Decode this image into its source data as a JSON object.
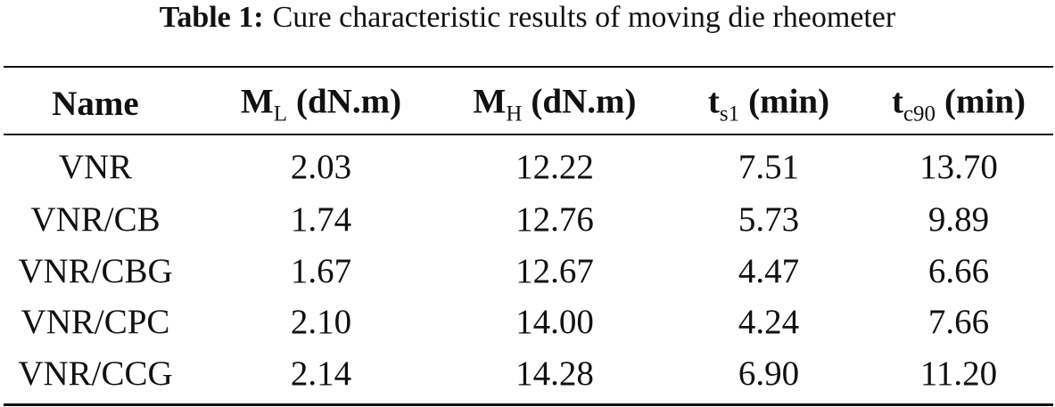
{
  "caption": {
    "label": "Table 1:",
    "text": "Cure characteristic results of moving die rheometer"
  },
  "table": {
    "headers": [
      {
        "text": "Name"
      },
      {
        "text": "M",
        "sub": "L",
        "unit": "(dN.m)"
      },
      {
        "text": "M",
        "sub": "H",
        "unit": "(dN.m)"
      },
      {
        "text": "t",
        "sub": "s1",
        "unit": "(min)"
      },
      {
        "text": "t",
        "sub": "c90",
        "unit": "(min)"
      }
    ],
    "rows": [
      [
        "VNR",
        "2.03",
        "12.22",
        "7.51",
        "13.70"
      ],
      [
        "VNR/CB",
        "1.74",
        "12.76",
        "5.73",
        "9.89"
      ],
      [
        "VNR/CBG",
        "1.67",
        "12.67",
        "4.47",
        "6.66"
      ],
      [
        "VNR/CPC",
        "2.10",
        "14.00",
        "4.24",
        "7.66"
      ],
      [
        "VNR/CCG",
        "2.14",
        "14.28",
        "6.90",
        "11.20"
      ]
    ]
  }
}
